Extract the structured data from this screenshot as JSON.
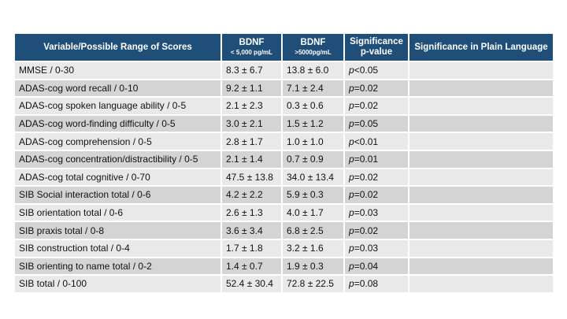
{
  "table": {
    "headers": {
      "variable": "Variable/Possible Range of Scores",
      "bdnf_low": "BDNF",
      "bdnf_low_sub": "< 5,000 pg/mL",
      "bdnf_high": "BDNF",
      "bdnf_high_sub": ">5000pg/mL",
      "significance": "Significance p-value",
      "plain": "Significance in Plain Language"
    },
    "rows": [
      {
        "variable": "MMSE / 0-30",
        "low": "8.3 ± 6.7",
        "high": "13.8 ± 6.0",
        "p_letter": "p",
        "p_rest": "<0.05",
        "plain": ""
      },
      {
        "variable": "ADAS-cog word recall / 0-10",
        "low": "9.2 ± 1.1",
        "high": "7.1 ± 2.4",
        "p_letter": "p",
        "p_rest": "=0.02",
        "plain": ""
      },
      {
        "variable": "ADAS-cog spoken language ability / 0-5",
        "low": "2.1 ± 2.3",
        "high": "0.3 ± 0.6",
        "p_letter": "p",
        "p_rest": "=0.02",
        "plain": ""
      },
      {
        "variable": "ADAS-cog word-finding difficulty / 0-5",
        "low": "3.0 ± 2.1",
        "high": "1.5 ± 1.2",
        "p_letter": "p",
        "p_rest": "=0.05",
        "plain": ""
      },
      {
        "variable": "ADAS-cog comprehension / 0-5",
        "low": "2.8 ± 1.7",
        "high": "1.0 ± 1.0",
        "p_letter": "p",
        "p_rest": "<0.01",
        "plain": ""
      },
      {
        "variable": "ADAS-cog concentration/distractibility / 0-5",
        "low": "2.1 ± 1.4",
        "high": "0.7 ± 0.9",
        "p_letter": "p",
        "p_rest": "=0.01",
        "plain": ""
      },
      {
        "variable": "ADAS-cog total cognitive / 0-70",
        "low": "47.5 ± 13.8",
        "high": "34.0 ± 13.4",
        "p_letter": "p",
        "p_rest": "=0.02",
        "plain": ""
      },
      {
        "variable": "SIB Social interaction total / 0-6",
        "low": "4.2 ± 2.2",
        "high": "5.9 ± 0.3",
        "p_letter": "p",
        "p_rest": "=0.02",
        "plain": ""
      },
      {
        "variable": "SIB orientation total / 0-6",
        "low": "2.6 ± 1.3",
        "high": "4.0 ± 1.7",
        "p_letter": "p",
        "p_rest": "=0.03",
        "plain": ""
      },
      {
        "variable": "SIB praxis total / 0-8",
        "low": "3.6 ± 3.4",
        "high": "6.8 ± 2.5",
        "p_letter": "p",
        "p_rest": "=0.02",
        "plain": ""
      },
      {
        "variable": "SIB construction total / 0-4",
        "low": "1.7 ± 1.8",
        "high": "3.2 ± 1.6",
        "p_letter": "p",
        "p_rest": "=0.03",
        "plain": ""
      },
      {
        "variable": "SIB orienting to name total / 0-2",
        "low": "1.4 ± 0.7",
        "high": "1.9 ± 0.3",
        "p_letter": "p",
        "p_rest": "=0.04",
        "plain": ""
      },
      {
        "variable": "SIB total / 0-100",
        "low": "52.4 ± 30.4",
        "high": "72.8 ± 22.5",
        "p_letter": "p",
        "p_rest": "=0.08",
        "plain": ""
      }
    ]
  }
}
